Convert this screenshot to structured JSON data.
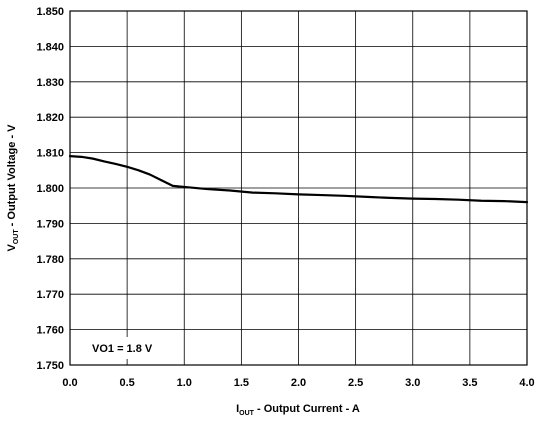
{
  "chart_data": {
    "type": "line",
    "x_axis": {
      "label_main": "I",
      "label_sub": "OUT",
      "label_rest": " - Output Current - A",
      "range": [
        0.0,
        4.0
      ],
      "ticks": [
        "0.0",
        "0.5",
        "1.0",
        "1.5",
        "2.0",
        "2.5",
        "3.0",
        "3.5",
        "4.0"
      ]
    },
    "y_axis": {
      "label_main": "V",
      "label_sub": "OUT",
      "label_rest": " - Output Voltage - V",
      "range": [
        1.75,
        1.85
      ],
      "ticks": [
        "1.750",
        "1.760",
        "1.770",
        "1.780",
        "1.790",
        "1.800",
        "1.810",
        "1.820",
        "1.830",
        "1.840",
        "1.850"
      ]
    },
    "grid": true,
    "annotation": "VO1 = 1.8 V",
    "series": [
      {
        "x": [
          0.0,
          0.1,
          0.2,
          0.3,
          0.4,
          0.5,
          0.6,
          0.7,
          0.8,
          0.9,
          1.0,
          1.2,
          1.4,
          1.6,
          1.8,
          2.0,
          2.2,
          2.4,
          2.6,
          2.8,
          3.0,
          3.2,
          3.4,
          3.6,
          3.8,
          4.0
        ],
        "y": [
          1.809,
          1.8088,
          1.8083,
          1.8075,
          1.8068,
          1.806,
          1.805,
          1.8038,
          1.8022,
          1.8006,
          1.8003,
          1.7997,
          1.7993,
          1.7987,
          1.7985,
          1.7982,
          1.798,
          1.7978,
          1.7975,
          1.7972,
          1.797,
          1.7969,
          1.7967,
          1.7964,
          1.7963,
          1.796
        ],
        "color": "#000000"
      }
    ]
  }
}
